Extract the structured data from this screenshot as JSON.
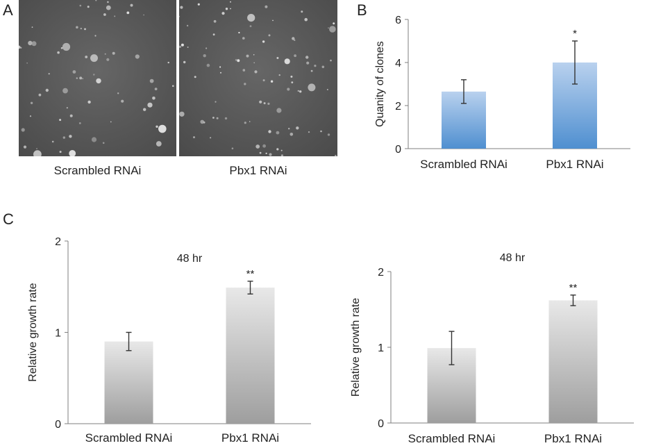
{
  "panels": {
    "a": {
      "letter": "A",
      "images": [
        {
          "label": "Scrambled RNAi"
        },
        {
          "label": "Pbx1 RNAi"
        }
      ]
    },
    "b": {
      "letter": "B"
    },
    "c": {
      "letter": "C"
    }
  },
  "colors": {
    "panel_b_bar_top": "#b9d1ee",
    "panel_b_bar_bottom": "#4f8fd0",
    "panel_c_bar_top": "#e8e8e8",
    "panel_c_bar_bottom": "#9e9e9e",
    "axis": "#7f7f7f",
    "text": "#222222"
  },
  "chart_data": [
    {
      "id": "B",
      "type": "bar",
      "title": "",
      "xlabel": "",
      "ylabel": "Quanity of clones",
      "ylim": [
        0,
        6
      ],
      "yticks": [
        "0",
        "2",
        "4",
        "6"
      ],
      "categories": [
        "Scrambled RNAi",
        "Pbx1 RNAi"
      ],
      "values": [
        2.65,
        4.0
      ],
      "errors": [
        0.55,
        1.0
      ],
      "significance": [
        "",
        "*"
      ],
      "grid": false
    },
    {
      "id": "C1",
      "type": "bar",
      "title": "48 hr",
      "xlabel": "",
      "ylabel": "Relative growth rate",
      "ylim": [
        0,
        2
      ],
      "yticks": [
        "0",
        "1",
        "2"
      ],
      "categories": [
        "Scrambled RNAi",
        "Pbx1 RNAi"
      ],
      "values": [
        0.9,
        1.49
      ],
      "errors": [
        0.1,
        0.07
      ],
      "significance": [
        "",
        "**"
      ],
      "grid": false
    },
    {
      "id": "C2",
      "type": "bar",
      "title": "48 hr",
      "xlabel": "",
      "ylabel": "Relative growth rate",
      "ylim": [
        0,
        2
      ],
      "yticks": [
        "0",
        "1",
        "2"
      ],
      "categories": [
        "Scrambled RNAi",
        "Pbx1 RNAi"
      ],
      "values": [
        0.99,
        1.62
      ],
      "errors": [
        0.22,
        0.07
      ],
      "significance": [
        "",
        "**"
      ],
      "grid": false
    }
  ]
}
